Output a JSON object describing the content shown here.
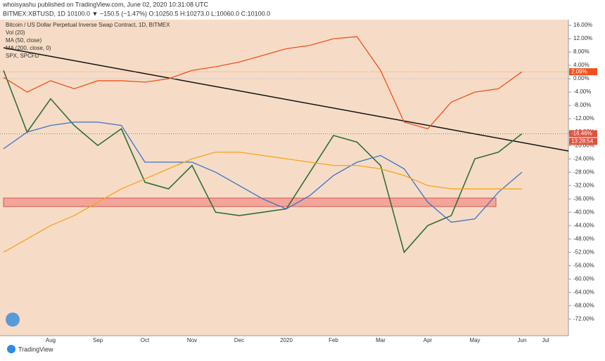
{
  "header": {
    "published": "whoisyashu published on TradingView.com, June 02, 2020 10:31:08 UTC",
    "quote": "BITMEX:XBTUSD, 1D  10100.0  ▼ −150.5 (−1.47%)  O:10250.5  H:10273.0  L:10060.0  C:10100.0"
  },
  "footer": "TradingView",
  "chart_data": {
    "type": "line",
    "title": "Bitcoin / US Dollar Perpetual Inverse Swap Contract, 1D, BITMEX",
    "volume_label": "Vol (20)",
    "categories": [
      null,
      null,
      "Aug",
      null,
      "Sep",
      null,
      "Oct",
      null,
      "Nov",
      null,
      "Dec",
      null,
      "2020",
      null,
      "Feb",
      null,
      "Mar",
      null,
      "Apr",
      null,
      "May",
      null,
      "Jun",
      "Jul"
    ],
    "series": [
      {
        "name": "Bitcoin / US Dollar Perpetual Inverse Swap Contract, 1D, BITMEX",
        "color": "#2f6e3c",
        "legend": false,
        "values": [
          2.5,
          -16,
          -6,
          -14,
          -20,
          -15,
          -31,
          -33,
          -26,
          -40,
          -41,
          -40,
          -39,
          -28,
          -17,
          -19,
          -26,
          -52,
          -44,
          -41,
          -24,
          -22,
          -16.46,
          null
        ],
        "value_labels": [
          null,
          null,
          null,
          null,
          null,
          null,
          null,
          null,
          null,
          null,
          null,
          null,
          null,
          null,
          null,
          null,
          null,
          null,
          null,
          null,
          null,
          null,
          "-16.46%",
          null
        ]
      },
      {
        "name": "MA (50, close)",
        "color": "#3b73c8",
        "values": [
          -21,
          -16,
          -14,
          -13,
          -13,
          -14,
          -25,
          -25,
          -25,
          -28,
          -32,
          -36,
          -39,
          -35,
          -29,
          -25,
          -23,
          -27,
          -37,
          -43,
          -42,
          -34,
          -28,
          null
        ]
      },
      {
        "name": "MA (200, close, 0)",
        "color": "#f5a31d",
        "values": [
          -52,
          -48,
          -44,
          -41,
          -37,
          -33,
          -30,
          -27,
          -24,
          -22,
          -22,
          -23,
          -24,
          -25,
          -26,
          -26,
          -27,
          -29,
          -32,
          -33,
          -33,
          -33,
          -33,
          null
        ]
      },
      {
        "name": "SPX, SPCFD",
        "color": "#f0501e",
        "values": [
          0.4,
          -4,
          -0.6,
          -3,
          -0.6,
          -0.6,
          -1,
          0,
          2.5,
          3.6,
          5,
          7,
          9,
          10,
          12,
          12.6,
          2.5,
          -13,
          -15,
          -7,
          -4,
          -3,
          2.09,
          null
        ],
        "value_labels": [
          null,
          null,
          null,
          null,
          null,
          null,
          null,
          null,
          null,
          null,
          null,
          null,
          null,
          null,
          null,
          null,
          null,
          null,
          null,
          null,
          null,
          null,
          "2.09%",
          null
        ]
      }
    ],
    "countdown": "13:28:54",
    "ylim": [
      -77,
      17.7
    ],
    "yticks": [
      {
        "value": 16,
        "label": "16.00%"
      },
      {
        "value": 12,
        "label": "12.00%"
      },
      {
        "value": 8,
        "label": "8.00%"
      },
      {
        "value": 4,
        "label": "4.00%"
      },
      {
        "value": 0,
        "label": "0.00%"
      },
      {
        "value": -4,
        "label": "-4.00%"
      },
      {
        "value": -8,
        "label": "-8.00%"
      },
      {
        "value": -12,
        "label": "-12.00%"
      },
      {
        "value": -16,
        "label": "-16.00%"
      },
      {
        "value": -20,
        "label": "-20.00%"
      },
      {
        "value": -24,
        "label": "-24.00%"
      },
      {
        "value": -28,
        "label": "-28.00%"
      },
      {
        "value": -32,
        "label": "-32.00%"
      },
      {
        "value": -36,
        "label": "-36.00%"
      },
      {
        "value": -40,
        "label": "-40.00%"
      },
      {
        "value": -44,
        "label": "-44.00%"
      },
      {
        "value": -48,
        "label": "-48.00%"
      },
      {
        "value": -52,
        "label": "-52.00%"
      },
      {
        "value": -56,
        "label": "-56.00%"
      },
      {
        "value": -60,
        "label": "-60.00%"
      },
      {
        "value": -64,
        "label": "-64.00%"
      },
      {
        "value": -68,
        "label": "-68.00%"
      },
      {
        "value": -72,
        "label": "-72.00%"
      }
    ],
    "grid": false
  }
}
